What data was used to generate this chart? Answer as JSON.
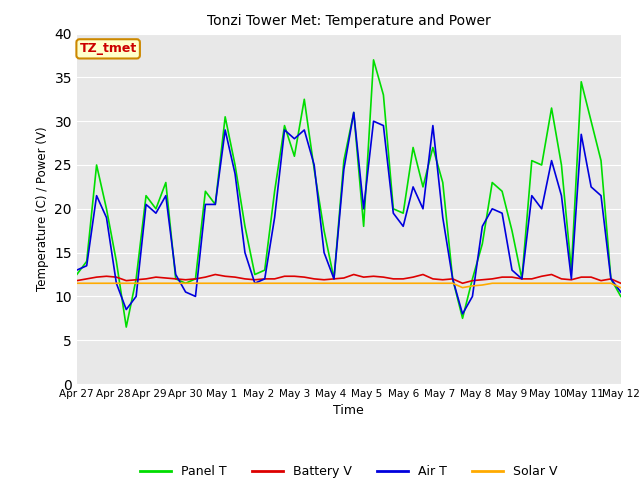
{
  "title": "Tonzi Tower Met: Temperature and Power",
  "xlabel": "Time",
  "ylabel": "Temperature (C) / Power (V)",
  "ylim": [
    0,
    40
  ],
  "yticks": [
    0,
    5,
    10,
    15,
    20,
    25,
    30,
    35,
    40
  ],
  "x_labels": [
    "Apr 27",
    "Apr 28",
    "Apr 29",
    "Apr 30",
    "May 1",
    "May 2",
    "May 3",
    "May 4",
    "May 5",
    "May 6",
    "May 7",
    "May 8",
    "May 9",
    "May 10",
    "May 11",
    "May 12"
  ],
  "annotation_text": "TZ_tmet",
  "annotation_color": "#cc0000",
  "annotation_bg": "#ffffcc",
  "annotation_border": "#cc8800",
  "panel_T_color": "#00dd00",
  "battery_V_color": "#dd0000",
  "air_T_color": "#0000dd",
  "solar_V_color": "#ffaa00",
  "bg_color": "#e8e8e8",
  "panel_T": [
    12.5,
    14.0,
    25.0,
    20.0,
    14.0,
    6.5,
    12.0,
    21.5,
    20.0,
    23.0,
    12.0,
    11.5,
    12.0,
    22.0,
    20.5,
    30.5,
    25.0,
    18.0,
    12.5,
    13.0,
    22.0,
    29.5,
    26.0,
    32.5,
    24.5,
    17.5,
    12.0,
    25.5,
    31.0,
    18.0,
    37.0,
    33.0,
    20.0,
    19.5,
    27.0,
    22.5,
    27.0,
    23.0,
    12.0,
    7.5,
    12.0,
    16.0,
    23.0,
    22.0,
    17.5,
    12.0,
    25.5,
    25.0,
    31.5,
    25.0,
    13.0,
    34.5,
    30.0,
    25.5,
    12.0,
    10.0
  ],
  "battery_V": [
    11.8,
    12.0,
    12.2,
    12.3,
    12.2,
    11.8,
    11.9,
    12.0,
    12.2,
    12.1,
    12.0,
    11.9,
    12.0,
    12.2,
    12.5,
    12.3,
    12.2,
    12.0,
    11.9,
    12.0,
    12.0,
    12.3,
    12.3,
    12.2,
    12.0,
    11.9,
    12.0,
    12.1,
    12.5,
    12.2,
    12.3,
    12.2,
    12.0,
    12.0,
    12.2,
    12.5,
    12.0,
    11.9,
    12.0,
    11.5,
    11.8,
    11.9,
    12.0,
    12.2,
    12.2,
    12.0,
    12.0,
    12.3,
    12.5,
    12.0,
    11.9,
    12.2,
    12.2,
    11.8,
    12.0,
    11.5
  ],
  "air_T": [
    13.0,
    13.5,
    21.5,
    19.0,
    11.5,
    8.5,
    10.0,
    20.5,
    19.5,
    21.5,
    12.5,
    10.5,
    10.0,
    20.5,
    20.5,
    29.0,
    24.0,
    15.0,
    11.5,
    12.0,
    19.0,
    29.0,
    28.0,
    29.0,
    25.0,
    15.0,
    12.0,
    24.5,
    31.0,
    20.0,
    30.0,
    29.5,
    19.5,
    18.0,
    22.5,
    20.0,
    29.5,
    19.0,
    12.0,
    8.0,
    10.0,
    18.0,
    20.0,
    19.5,
    13.0,
    12.0,
    21.5,
    20.0,
    25.5,
    21.5,
    12.0,
    28.5,
    22.5,
    21.5,
    12.0,
    10.5
  ],
  "solar_V": [
    11.5,
    11.5,
    11.5,
    11.5,
    11.5,
    11.5,
    11.5,
    11.5,
    11.5,
    11.5,
    11.5,
    11.5,
    11.5,
    11.5,
    11.5,
    11.5,
    11.5,
    11.5,
    11.5,
    11.5,
    11.5,
    11.5,
    11.5,
    11.5,
    11.5,
    11.5,
    11.5,
    11.5,
    11.5,
    11.5,
    11.5,
    11.5,
    11.5,
    11.5,
    11.5,
    11.5,
    11.5,
    11.5,
    11.5,
    11.0,
    11.2,
    11.3,
    11.5,
    11.5,
    11.5,
    11.5,
    11.5,
    11.5,
    11.5,
    11.5,
    11.5,
    11.5,
    11.5,
    11.5,
    11.5,
    11.0
  ]
}
